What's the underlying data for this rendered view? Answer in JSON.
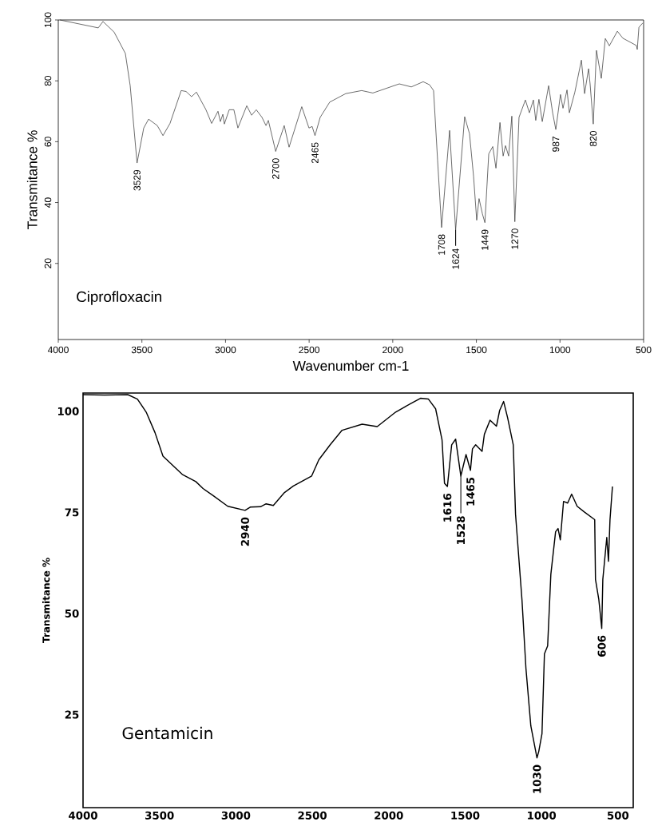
{
  "chart_data": [
    {
      "type": "line",
      "xlabel": "Wavenumber cm-1",
      "ylabel": "Transmitance %",
      "color": "#333333",
      "x": [
        3990,
        3761,
        3733,
        3666,
        3599,
        3570,
        3529,
        3489,
        3460,
        3408,
        3374,
        3332,
        3265,
        3236,
        3203,
        3174,
        3117,
        3083,
        3045,
        3031,
        3016,
        3007,
        2978,
        2950,
        2926,
        2873,
        2844,
        2816,
        2782,
        2758,
        2744,
        2700,
        2649,
        2620,
        2544,
        2501,
        2482,
        2465,
        2434,
        2377,
        2281,
        2186,
        2119,
        1961,
        1889,
        1818,
        1780,
        1756,
        1732,
        1708,
        1660,
        1624,
        1570,
        1541,
        1517,
        1498,
        1484,
        1464,
        1449,
        1426,
        1402,
        1383,
        1359,
        1340,
        1326,
        1307,
        1288,
        1270,
        1245,
        1207,
        1183,
        1159,
        1145,
        1126,
        1106,
        1068,
        1044,
        1025,
        997,
        982,
        958,
        944,
        911,
        872,
        853,
        829,
        820,
        801,
        782,
        753,
        729,
        705,
        657,
        624,
        543,
        538,
        528,
        505
      ],
      "values": [
        100,
        97.4,
        99.5,
        96,
        89,
        78.4,
        53,
        64.5,
        67.4,
        65.3,
        62,
        66,
        76.8,
        76.5,
        74.8,
        76.3,
        70.5,
        66,
        70,
        66.6,
        69,
        65.8,
        70.5,
        70.5,
        64.5,
        71.8,
        68.7,
        70.5,
        68,
        65.3,
        67,
        56.8,
        65.3,
        58.2,
        71.5,
        64.5,
        65,
        62,
        68,
        73,
        75.8,
        76.8,
        76,
        79,
        78,
        79.7,
        78.7,
        76.8,
        54,
        31.8,
        63.7,
        31,
        68.2,
        62.6,
        48.7,
        34.2,
        41.3,
        36.3,
        33.4,
        56,
        58.4,
        51.3,
        66.3,
        55.3,
        58.7,
        55.3,
        68.4,
        33.7,
        68,
        73.7,
        69.5,
        73.7,
        67,
        73.9,
        66.6,
        78.4,
        69.5,
        64,
        75.5,
        71,
        77,
        69.5,
        76.3,
        86.8,
        75.8,
        84,
        79,
        65.8,
        90,
        80.8,
        93.9,
        91.5,
        96.3,
        94,
        91.6,
        90.3,
        97.6,
        99
      ],
      "xlim": [
        4000,
        500
      ],
      "ylim": [
        -5,
        100
      ],
      "xticks": [
        4000,
        3500,
        3000,
        2500,
        2000,
        1500,
        1000,
        500
      ],
      "yticks": [
        20,
        40,
        60,
        80,
        100
      ],
      "annotations": [
        {
          "text": "3529",
          "x": 3529,
          "y": 53
        },
        {
          "text": "2700",
          "x": 2700,
          "y": 56.8
        },
        {
          "text": "2465",
          "x": 2465,
          "y": 62
        },
        {
          "text": "1708",
          "x": 1708,
          "y": 31.8
        },
        {
          "text": "1624",
          "x": 1624,
          "y": 31
        },
        {
          "text": "1449",
          "x": 1449,
          "y": 33.4
        },
        {
          "text": "1270",
          "x": 1270,
          "y": 33.7
        },
        {
          "text": "987",
          "x": 1025,
          "y": 64
        },
        {
          "text": "820",
          "x": 801,
          "y": 65.8
        },
        "Ciprofloxacin"
      ]
    },
    {
      "type": "line",
      "ylabel": "Transmitance %",
      "color": "#000000",
      "x": [
        4000,
        3859,
        3707,
        3644,
        3587,
        3529,
        3477,
        3351,
        3262,
        3215,
        3147,
        3053,
        2940,
        2906,
        2839,
        2802,
        2755,
        2682,
        2624,
        2504,
        2457,
        2383,
        2305,
        2174,
        2075,
        1954,
        1860,
        1792,
        1740,
        1693,
        1651,
        1635,
        1616,
        1588,
        1562,
        1528,
        1494,
        1465,
        1452,
        1431,
        1389,
        1374,
        1337,
        1295,
        1274,
        1248,
        1222,
        1185,
        1170,
        1128,
        1102,
        1070,
        1030,
        1018,
        997,
        981,
        960,
        939,
        908,
        892,
        877,
        856,
        829,
        803,
        767,
        720,
        652,
        647,
        625,
        606,
        599,
        573,
        562,
        552,
        536
      ],
      "values": [
        104.1,
        104,
        104.1,
        103,
        99.8,
        94.7,
        88.9,
        84.4,
        82.6,
        80.9,
        79.1,
        76.5,
        75.5,
        76.3,
        76.4,
        77.1,
        76.7,
        79.9,
        81.5,
        84,
        88,
        91.7,
        95.3,
        96.8,
        96.2,
        99.8,
        101.8,
        103.2,
        103,
        100.6,
        92.9,
        82.2,
        81.4,
        91.7,
        93.1,
        84,
        89.3,
        85.4,
        90.7,
        91.7,
        90.1,
        94.3,
        97.8,
        96.3,
        100.2,
        102.4,
        98.4,
        91.7,
        74.5,
        53.4,
        36.4,
        22.2,
        14.3,
        15.9,
        20.3,
        40,
        42,
        59.7,
        70.2,
        71,
        68.2,
        77.7,
        77.3,
        79.5,
        76.5,
        75.1,
        73.2,
        58.4,
        53.4,
        46.3,
        58.4,
        68.8,
        62.9,
        73.2,
        81.4
      ],
      "xlim": [
        4000,
        400
      ],
      "ylim": [
        2,
        104.5
      ],
      "xticks": [
        4000,
        3500,
        3000,
        2500,
        2000,
        1500,
        1000,
        500
      ],
      "yticks": [
        25,
        50,
        75,
        100
      ],
      "annotations": [
        {
          "text": "2940",
          "x": 2940,
          "y": 75.5
        },
        {
          "text": "1616",
          "x": 1616,
          "y": 81.4
        },
        {
          "text": "1528",
          "x": 1528,
          "y": 84
        },
        {
          "text": "1465",
          "x": 1465,
          "y": 85.4
        },
        {
          "text": "1030",
          "x": 1030,
          "y": 14.3
        },
        {
          "text": "606",
          "x": 606,
          "y": 46.3
        },
        "Gentamicin"
      ]
    }
  ]
}
